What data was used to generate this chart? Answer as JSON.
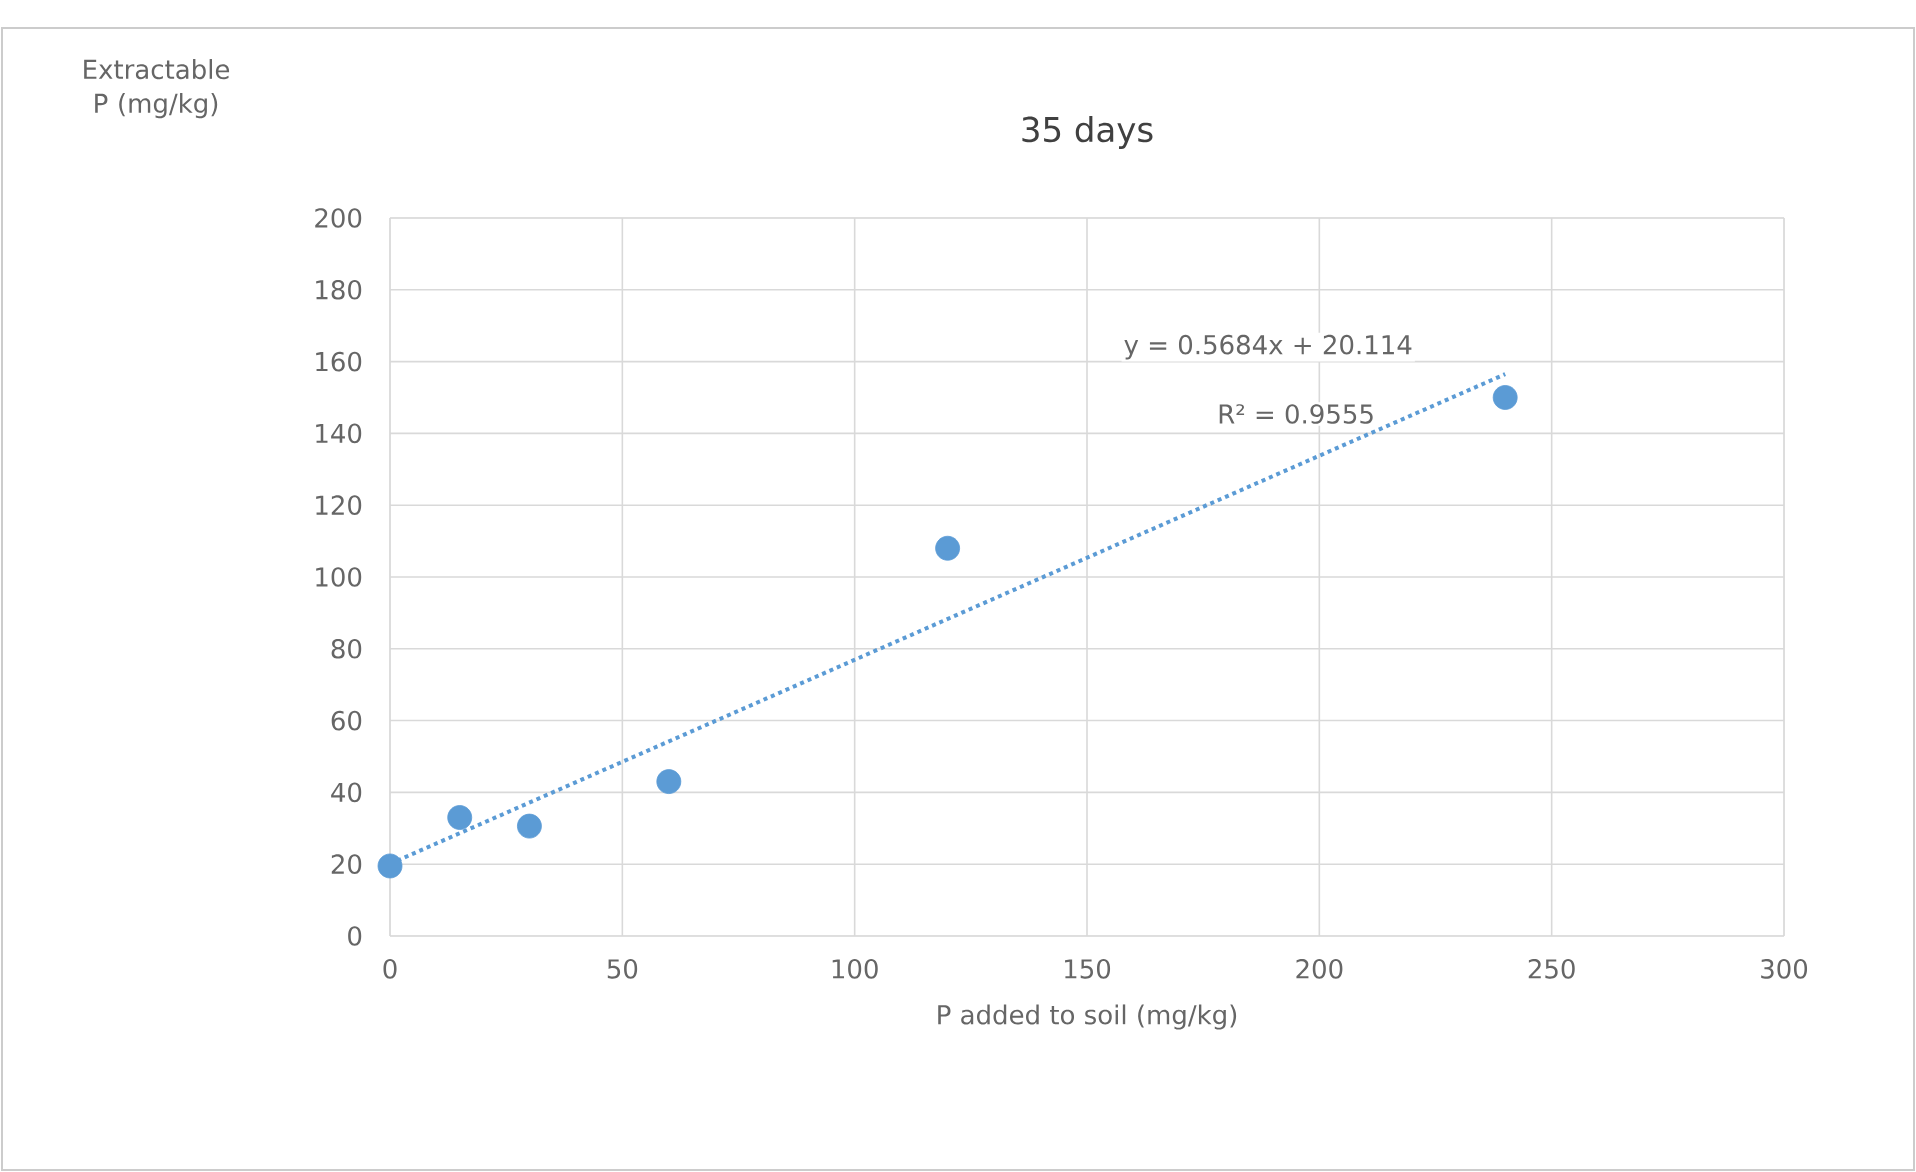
{
  "chart_data": {
    "type": "scatter",
    "title": "35 days",
    "xlabel": "P added to soil (mg/kg)",
    "ylabel": "Extractable P (mg/kg)",
    "series": [
      {
        "color": "#5b9bd5",
        "marker": "circle",
        "x": [
          0,
          15,
          30,
          60,
          120,
          240
        ],
        "values": [
          19.5,
          33,
          30.6,
          43,
          108,
          150
        ]
      },
      {
        "type": "line",
        "color": "#5b9bd5",
        "line_style": "dotted",
        "marker": "none",
        "x": [
          0,
          240
        ],
        "values": [
          20.1,
          156.5
        ]
      }
    ],
    "annotations": [
      "y = 0.5684x + 20.114",
      "R² = 0.9555"
    ],
    "xlim": [
      0,
      300
    ],
    "ylim": [
      0,
      200
    ],
    "xticks": [
      0,
      50,
      100,
      150,
      200,
      250,
      300
    ],
    "yticks": [
      0,
      20,
      40,
      60,
      80,
      100,
      120,
      140,
      160,
      180,
      200
    ],
    "grid": true
  }
}
